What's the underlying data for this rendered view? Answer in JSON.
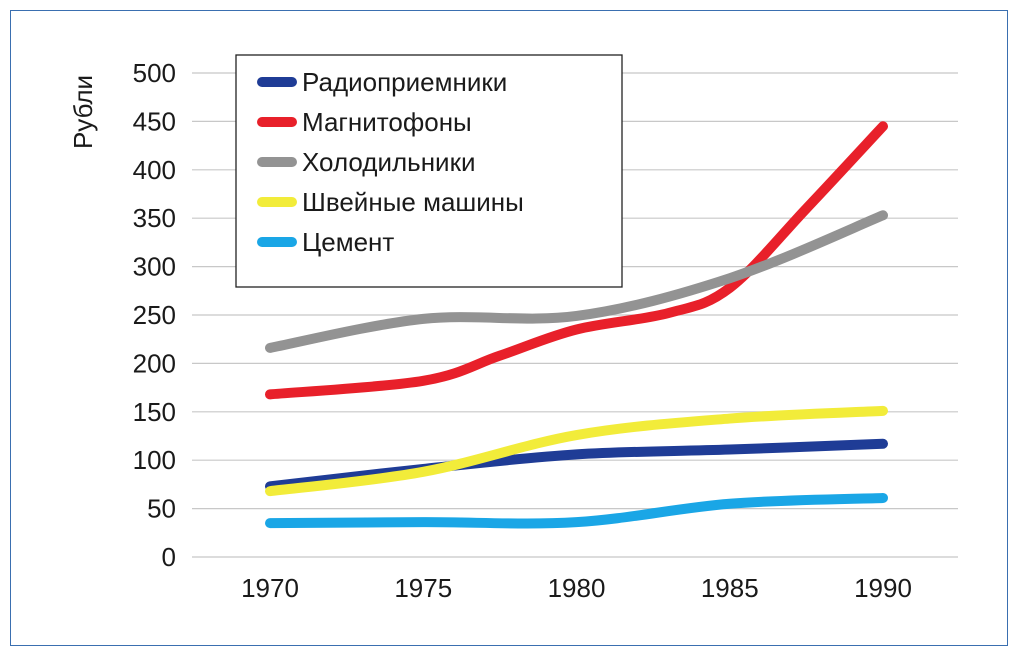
{
  "chart_data": {
    "type": "line",
    "title": "",
    "xlabel": "",
    "ylabel": "Рубли",
    "x": [
      1970,
      1975,
      1980,
      1985,
      1990
    ],
    "xticks": [
      "1970",
      "1975",
      "1980",
      "1985",
      "1990"
    ],
    "yticks": [
      "0",
      "50",
      "100",
      "150",
      "200",
      "250",
      "300",
      "350",
      "400",
      "450",
      "500"
    ],
    "ylim": [
      0,
      500
    ],
    "grid": "horizontal",
    "legend_position": "top-left",
    "series": [
      {
        "name": "Радиоприемники",
        "color": "#1f3c96",
        "x": [
          1970,
          1975,
          1980,
          1985,
          1990
        ],
        "values": [
          73,
          91,
          106,
          111,
          117
        ]
      },
      {
        "name": "Магнитофоны",
        "color": "#e8202a",
        "x": [
          1970,
          1975,
          1977.5,
          1980,
          1983,
          1985,
          1987.5,
          1990
        ],
        "values": [
          168,
          182,
          208,
          235,
          252,
          278,
          360,
          445
        ]
      },
      {
        "name": "Холодильники",
        "color": "#939393",
        "x": [
          1970,
          1975,
          1980,
          1985,
          1990
        ],
        "values": [
          216,
          246,
          249,
          288,
          353
        ]
      },
      {
        "name": "Швейные машины",
        "color": "#f2ec3a",
        "x": [
          1970,
          1975,
          1980,
          1985,
          1990
        ],
        "values": [
          68,
          88,
          126,
          143,
          151
        ]
      },
      {
        "name": "Цемент",
        "color": "#1aa6e6",
        "x": [
          1970,
          1975,
          1980,
          1985,
          1990
        ],
        "values": [
          35,
          36,
          36,
          55,
          61
        ]
      }
    ]
  }
}
